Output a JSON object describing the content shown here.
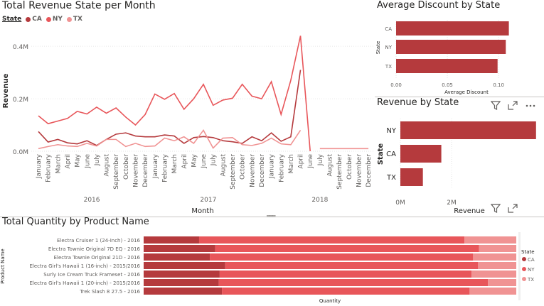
{
  "line_panel": {
    "title": "Total Revenue State per Month",
    "legend_title": "State"
  },
  "discount_panel": {
    "title": "Average Discount by State"
  },
  "revenue_panel": {
    "title": "Revenue by State",
    "icons": [
      "filter-icon",
      "focus-mode-icon",
      "more-options-icon"
    ]
  },
  "quantity_panel": {
    "title": "Total Quantity by Product Name",
    "legend_title": "State",
    "icons": [
      "filter-icon",
      "focus-mode-icon"
    ]
  },
  "colors": {
    "CA": "#b53a3d",
    "NY": "#e8565a",
    "TX": "#f09393"
  },
  "chart_data": [
    {
      "type": "line",
      "title": "Total Revenue State per Month",
      "xlabel": "Month",
      "ylabel": "Revenue",
      "x": [
        "January",
        "February",
        "March",
        "April",
        "May",
        "June",
        "July",
        "August",
        "September",
        "October",
        "November",
        "December",
        "January",
        "February",
        "March",
        "April",
        "May",
        "June",
        "July",
        "August",
        "September",
        "October",
        "November",
        "December",
        "January",
        "February",
        "March",
        "April",
        "June",
        "July",
        "August",
        "September",
        "October",
        "November",
        "December"
      ],
      "year_groups": [
        {
          "label": "2016",
          "start": 0,
          "end": 11
        },
        {
          "label": "2017",
          "start": 12,
          "end": 23
        },
        {
          "label": "2018",
          "start": 24,
          "end": 34
        }
      ],
      "yticks": [
        {
          "value": 0,
          "label": "0.0M"
        },
        {
          "value": 200000,
          "label": "0.2M"
        },
        {
          "value": 400000,
          "label": "0.4M"
        }
      ],
      "ylim": [
        0,
        460000
      ],
      "series": [
        {
          "name": "CA",
          "values": [
            75000,
            35000,
            45000,
            32000,
            28000,
            40000,
            22000,
            45000,
            65000,
            70000,
            58000,
            55000,
            55000,
            62000,
            58000,
            30000,
            52000,
            56000,
            52000,
            40000,
            36000,
            30000,
            55000,
            40000,
            70000,
            38000,
            55000,
            310000,
            null,
            null,
            null,
            null,
            null,
            null,
            null
          ]
        },
        {
          "name": "NY",
          "values": [
            135000,
            105000,
            115000,
            125000,
            152000,
            142000,
            168000,
            145000,
            165000,
            130000,
            100000,
            140000,
            218000,
            198000,
            220000,
            160000,
            200000,
            255000,
            175000,
            195000,
            202000,
            255000,
            210000,
            200000,
            265000,
            140000,
            270000,
            440000,
            0,
            null,
            null,
            null,
            null,
            null,
            null
          ]
        },
        {
          "name": "TX",
          "values": [
            10000,
            18000,
            25000,
            20000,
            18000,
            30000,
            20000,
            45000,
            45000,
            18000,
            30000,
            18000,
            20000,
            50000,
            40000,
            55000,
            30000,
            80000,
            12000,
            50000,
            52000,
            25000,
            22000,
            30000,
            50000,
            28000,
            25000,
            80000,
            null,
            10000,
            10000,
            10000,
            10000,
            10000,
            10000
          ]
        }
      ]
    },
    {
      "type": "bar",
      "orientation": "horizontal",
      "title": "Average Discount by State",
      "xlabel": "Average Discount",
      "ylabel": "State",
      "categories": [
        "CA",
        "NY",
        "TX"
      ],
      "values": [
        0.11,
        0.107,
        0.099
      ],
      "xticks": [
        "0.00",
        "0.05",
        "0.10"
      ],
      "xlim": [
        0,
        0.12
      ]
    },
    {
      "type": "bar",
      "orientation": "horizontal",
      "title": "Revenue by State",
      "xlabel": "Revenue",
      "ylabel": "State",
      "categories": [
        "NY",
        "CA",
        "TX"
      ],
      "values": [
        5300000,
        1600000,
        880000
      ],
      "xticks": [
        "0M",
        "2M"
      ],
      "xlim": [
        0,
        6000000
      ]
    },
    {
      "type": "bar",
      "orientation": "horizontal",
      "stacked": true,
      "title": "Total Quantity by Product Name",
      "xlabel": "Quantity",
      "ylabel": "Product Name",
      "legend_position": "right",
      "categories": [
        "Electra Cruiser 1 (24-Inch) - 2016",
        "Electra Townie Original 7D EQ - 2016",
        "Electra Townie Original 21D - 2016",
        "Electra Girl's Hawaii 1 (16-inch) - 2015/2016",
        "Surly Ice Cream Truck Frameset - 2016",
        "Electra Girl's Hawaii 1 (20-inch) - 2015/2016",
        "Trek Slash 8 27.5 - 2016"
      ],
      "series": [
        {
          "name": "CA",
          "values": [
            75,
            96,
            89,
            109,
            102,
            101,
            104
          ]
        },
        {
          "name": "NY",
          "values": [
            359,
            354,
            354,
            338,
            338,
            362,
            329
          ]
        },
        {
          "name": "TX",
          "values": [
            70,
            50,
            58,
            51,
            60,
            38,
            62
          ]
        }
      ]
    }
  ]
}
